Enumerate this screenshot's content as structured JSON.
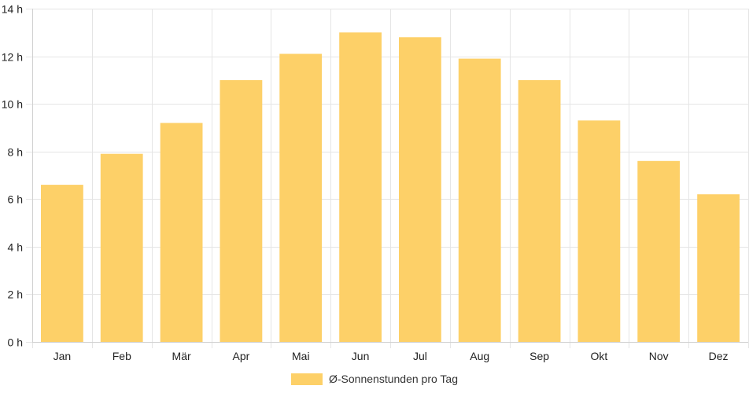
{
  "chart_data": {
    "type": "bar",
    "categories": [
      "Jan",
      "Feb",
      "Mär",
      "Apr",
      "Mai",
      "Jun",
      "Jul",
      "Aug",
      "Sep",
      "Okt",
      "Nov",
      "Dez"
    ],
    "series": [
      {
        "name": "Ø-Sonnenstunden pro Tag",
        "values": [
          6.6,
          7.9,
          9.2,
          11.0,
          12.1,
          13.0,
          12.8,
          11.9,
          11.0,
          9.3,
          7.6,
          6.2
        ],
        "color": "#fdd068"
      }
    ],
    "ylim": [
      0,
      14
    ],
    "y_ticks": [
      0,
      2,
      4,
      6,
      8,
      10,
      12,
      14
    ],
    "y_tick_suffix": " h",
    "grid": true,
    "legend_position": "bottom"
  }
}
